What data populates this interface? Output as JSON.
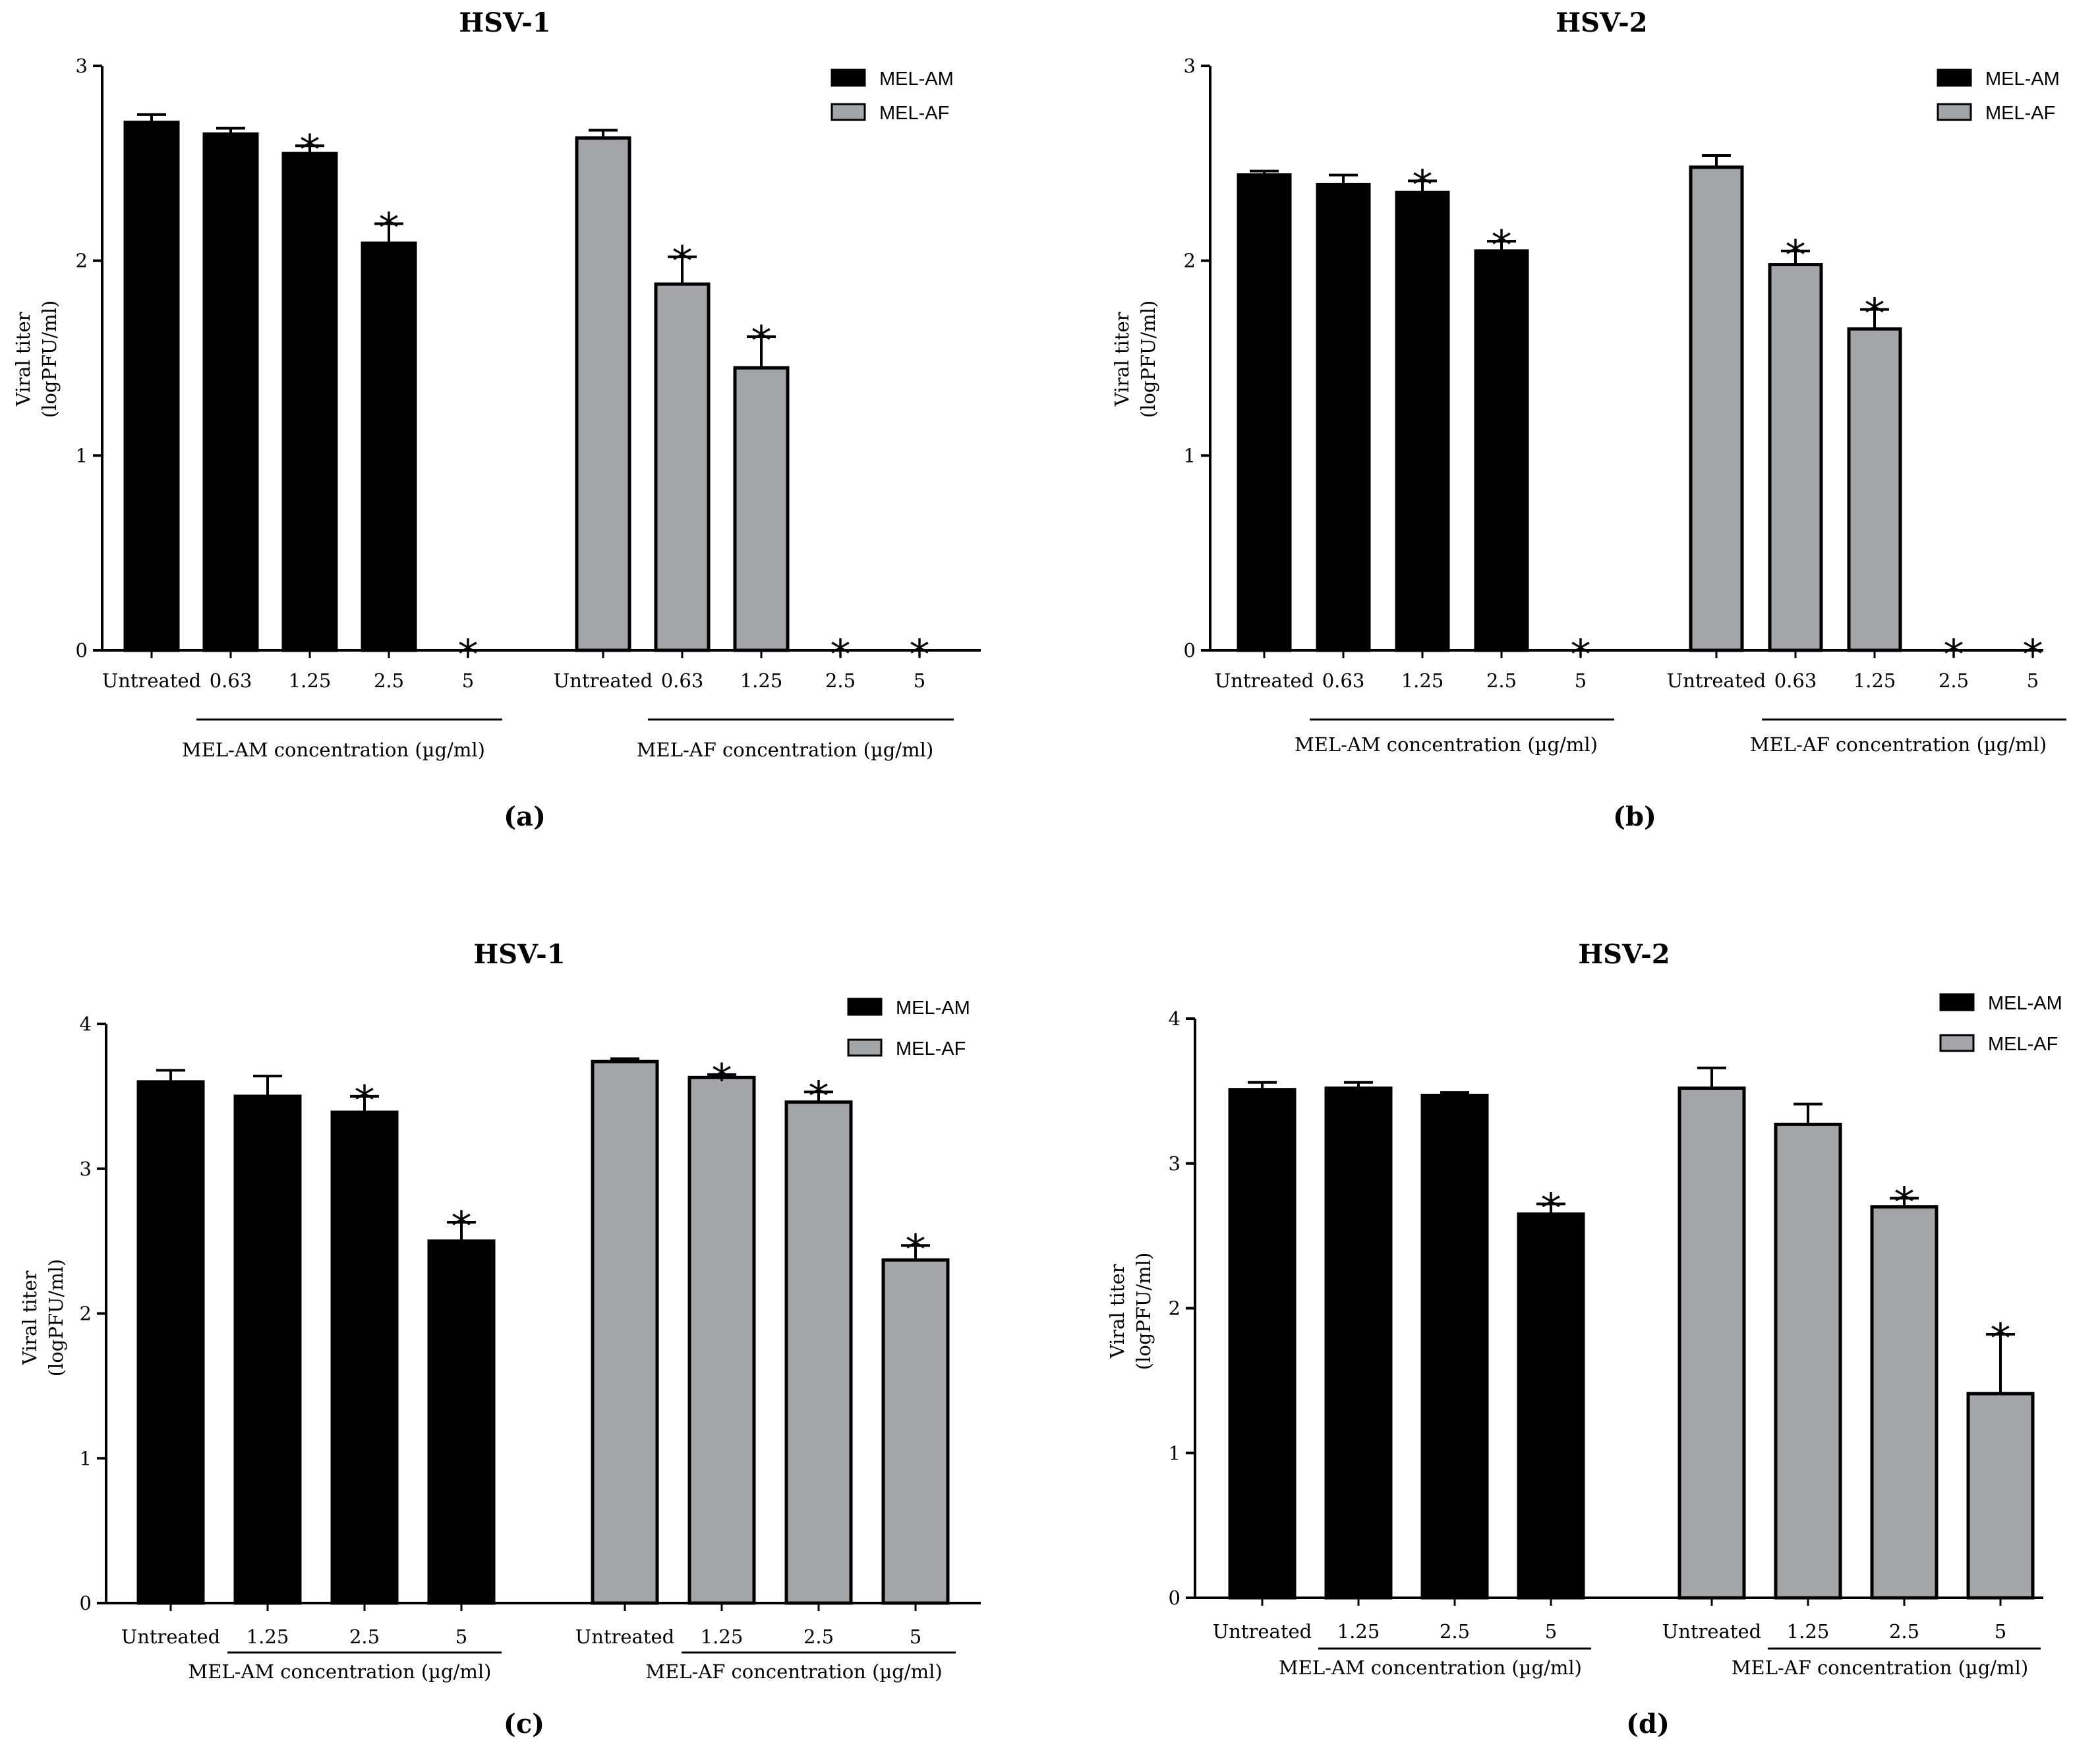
{
  "figure": {
    "y_axis_label_line1": "Viral titer",
    "y_axis_label_line2": "(logPFU/ml)",
    "colors": {
      "MEL-AM": "#000000",
      "MEL-AF": "#a4a5a9",
      "axis": "#000000"
    }
  },
  "chart_data": [
    {
      "panel": "(a)",
      "type": "bar",
      "title": "HSV-1",
      "ylabel": "Viral titer (logPFU/ml)",
      "ylim": [
        0,
        3
      ],
      "yticks": [
        "0",
        "1",
        "2",
        "3"
      ],
      "legend": [
        "MEL-AM",
        "MEL-AF"
      ],
      "legend_position": "top-right",
      "groups": [
        {
          "series": "MEL-AM",
          "label": "MEL-AM concentration (µg/ml)",
          "categories": [
            "Untreated",
            "0.63",
            "1.25",
            "2.5",
            "5"
          ],
          "values": [
            2.71,
            2.65,
            2.55,
            2.09,
            0
          ],
          "errors": [
            0.04,
            0.03,
            0.04,
            0.1,
            0
          ],
          "significant": [
            false,
            false,
            true,
            true,
            true
          ]
        },
        {
          "series": "MEL-AF",
          "label": "MEL-AF concentration (µg/ml)",
          "categories": [
            "Untreated",
            "0.63",
            "1.25",
            "2.5",
            "5"
          ],
          "values": [
            2.63,
            1.88,
            1.45,
            0,
            0
          ],
          "errors": [
            0.04,
            0.14,
            0.16,
            0,
            0
          ],
          "significant": [
            false,
            true,
            true,
            true,
            true
          ]
        }
      ]
    },
    {
      "panel": "(b)",
      "type": "bar",
      "title": "HSV-2",
      "ylabel": "Viral titer (logPFU/ml)",
      "ylim": [
        0,
        3
      ],
      "yticks": [
        "0",
        "1",
        "2",
        "3"
      ],
      "legend": [
        "MEL-AM",
        "MEL-AF"
      ],
      "legend_position": "top-right",
      "groups": [
        {
          "series": "MEL-AM",
          "label": "MEL-AM concentration (µg/ml)",
          "categories": [
            "Untreated",
            "0.63",
            "1.25",
            "2.5",
            "5"
          ],
          "values": [
            2.44,
            2.39,
            2.35,
            2.05,
            0
          ],
          "errors": [
            0.02,
            0.05,
            0.06,
            0.05,
            0
          ],
          "significant": [
            false,
            false,
            true,
            true,
            true
          ]
        },
        {
          "series": "MEL-AF",
          "label": "MEL-AF concentration (µg/ml)",
          "categories": [
            "Untreated",
            "0.63",
            "1.25",
            "2.5",
            "5"
          ],
          "values": [
            2.48,
            1.98,
            1.65,
            0,
            0
          ],
          "errors": [
            0.06,
            0.07,
            0.1,
            0,
            0
          ],
          "significant": [
            false,
            true,
            true,
            true,
            true
          ]
        }
      ]
    },
    {
      "panel": "(c)",
      "type": "bar",
      "title": "HSV-1",
      "ylabel": "Viral titer (logPFU/ml)",
      "ylim": [
        0,
        4
      ],
      "yticks": [
        "0",
        "1",
        "2",
        "3",
        "4"
      ],
      "legend": [
        "MEL-AM",
        "MEL-AF"
      ],
      "legend_position": "top-right",
      "groups": [
        {
          "series": "MEL-AM",
          "label": "MEL-AM concentration (µg/ml)",
          "categories": [
            "Untreated",
            "1.25",
            "2.5",
            "5"
          ],
          "values": [
            3.6,
            3.5,
            3.39,
            2.5
          ],
          "errors": [
            0.08,
            0.14,
            0.11,
            0.13
          ],
          "significant": [
            false,
            false,
            true,
            true
          ]
        },
        {
          "series": "MEL-AF",
          "label": "MEL-AF concentration (µg/ml)",
          "categories": [
            "Untreated",
            "1.25",
            "2.5",
            "5"
          ],
          "values": [
            3.74,
            3.63,
            3.46,
            2.37
          ],
          "errors": [
            0.02,
            0.02,
            0.07,
            0.1
          ],
          "significant": [
            false,
            true,
            true,
            true
          ]
        }
      ]
    },
    {
      "panel": "(d)",
      "type": "bar",
      "title": "HSV-2",
      "ylabel": "Viral titer (logPFU/ml)",
      "ylim": [
        0,
        4
      ],
      "yticks": [
        "0",
        "1",
        "2",
        "3",
        "4"
      ],
      "legend": [
        "MEL-AM",
        "MEL-AF"
      ],
      "legend_position": "top-right",
      "groups": [
        {
          "series": "MEL-AM",
          "label": "MEL-AM concentration (µg/ml)",
          "categories": [
            "Untreated",
            "1.25",
            "2.5",
            "5"
          ],
          "values": [
            3.51,
            3.52,
            3.47,
            2.65
          ],
          "errors": [
            0.05,
            0.04,
            0.02,
            0.07
          ],
          "significant": [
            false,
            false,
            false,
            true
          ]
        },
        {
          "series": "MEL-AF",
          "label": "MEL-AF concentration (µg/ml)",
          "categories": [
            "Untreated",
            "1.25",
            "2.5",
            "5"
          ],
          "values": [
            3.52,
            3.27,
            2.7,
            1.41
          ],
          "errors": [
            0.14,
            0.14,
            0.06,
            0.41
          ],
          "significant": [
            false,
            false,
            true,
            true
          ]
        }
      ]
    }
  ]
}
